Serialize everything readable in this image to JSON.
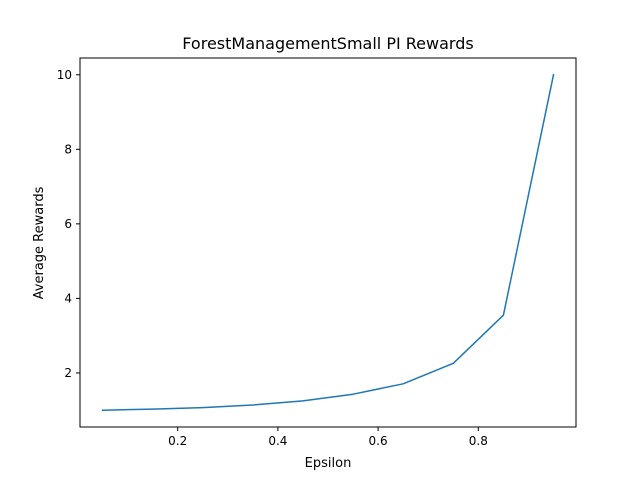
{
  "chart_data": {
    "type": "line",
    "title": "ForestManagementSmall PI Rewards",
    "xlabel": "Epsilon",
    "ylabel": "Average Rewards",
    "xlim": [
      0.005,
      0.995
    ],
    "ylim": [
      0.55,
      10.45
    ],
    "xticks": [
      {
        "value": 0.2,
        "label": "0.2"
      },
      {
        "value": 0.4,
        "label": "0.4"
      },
      {
        "value": 0.6,
        "label": "0.6"
      },
      {
        "value": 0.8,
        "label": "0.8"
      }
    ],
    "yticks": [
      {
        "value": 2,
        "label": "2"
      },
      {
        "value": 4,
        "label": "4"
      },
      {
        "value": 6,
        "label": "6"
      },
      {
        "value": 8,
        "label": "8"
      },
      {
        "value": 10,
        "label": "10"
      }
    ],
    "grid": false,
    "series": [
      {
        "color": "#1f77b4",
        "x": [
          0.05,
          0.15,
          0.25,
          0.35,
          0.45,
          0.55,
          0.65,
          0.75,
          0.85,
          0.95
        ],
        "y": [
          1.0,
          1.03,
          1.07,
          1.14,
          1.25,
          1.43,
          1.71,
          2.26,
          3.55,
          10.0
        ]
      }
    ]
  }
}
